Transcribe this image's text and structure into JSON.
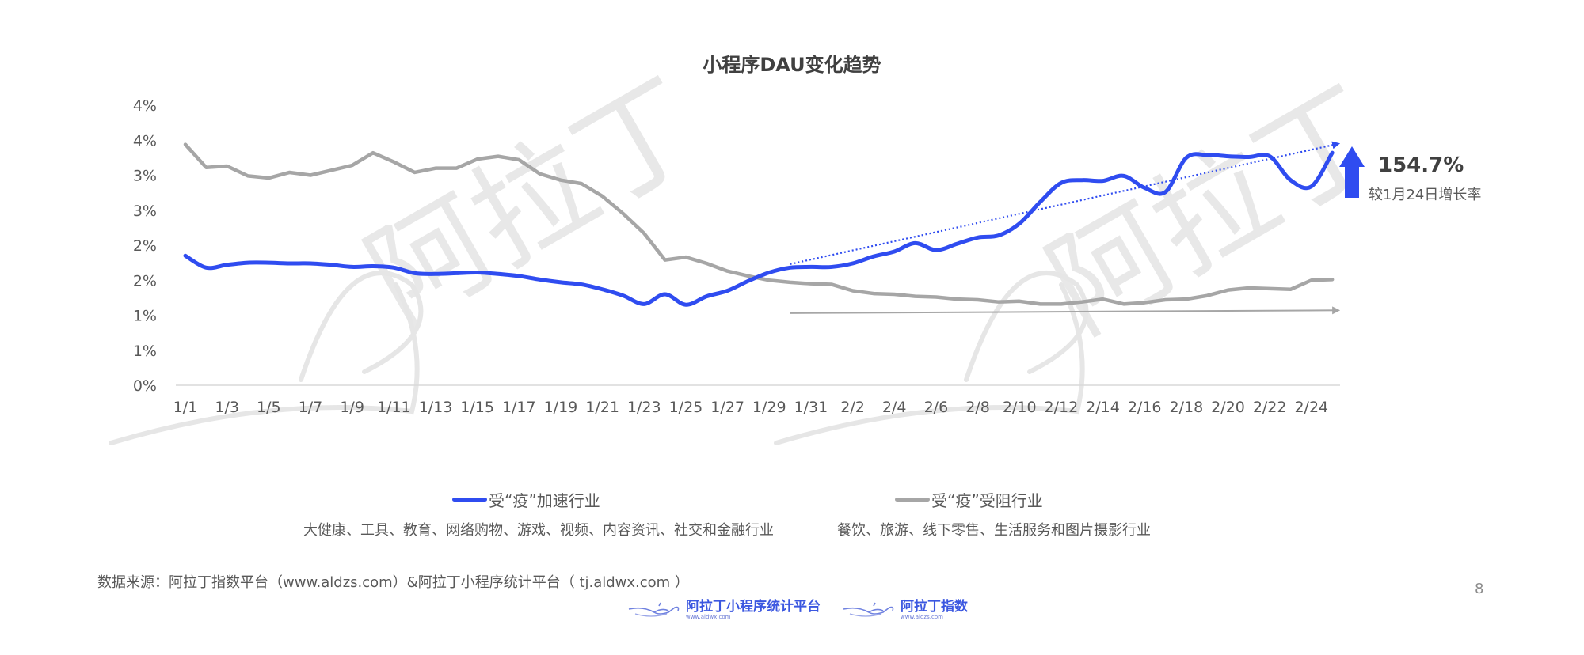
{
  "title": "小程序DAU变化趋势",
  "colors": {
    "accelerated": "#2f4cf0",
    "hindered": "#a6a6a6",
    "axis": "#d9d9d9",
    "text": "#595959",
    "watermark": "#e6e6e6"
  },
  "callout": {
    "icon": "up-arrow-icon",
    "value": "154.7%",
    "label": "较1月24日增长率"
  },
  "legend": {
    "accelerated": {
      "label": "受“疫”加速行业",
      "description": "大健康、工具、教育、网络购物、游戏、视频、内容资讯、社交和金融行业"
    },
    "hindered": {
      "label": "受“疫”受阻行业",
      "description": "餐饮、旅游、线下零售、生活服务和图片摄影行业"
    }
  },
  "footer": {
    "source": "数据来源：阿拉丁指数平台（www.aldzs.com）&阿拉丁小程序统计平台（ tj.aldwx.com ）",
    "page_number": "8",
    "logos": [
      {
        "name": "阿拉丁小程序统计平台",
        "url": "www.aldwx.com",
        "icon": "magic-lamp-icon"
      },
      {
        "name": "阿拉丁指数",
        "url": "www.aldzs.com",
        "icon": "magic-lamp-icon"
      }
    ]
  },
  "watermark": "阿拉丁",
  "chart_data": {
    "type": "line",
    "title": "小程序DAU变化趋势",
    "xlabel": "",
    "ylabel": "",
    "ylim": [
      0,
      4
    ],
    "ytick_values": [
      0,
      0.5,
      1,
      1.5,
      2,
      2.5,
      3,
      3.5,
      4
    ],
    "ytick_labels": [
      "0%",
      "1%",
      "1%",
      "2%",
      "2%",
      "3%",
      "3%",
      "4%",
      "4%"
    ],
    "ytick_labels_display": [
      "0%",
      "1%",
      "1%",
      "2%",
      "2%",
      "3%",
      "3%",
      "4%"
    ],
    "xtick_labels": [
      "1/1",
      "1/3",
      "1/5",
      "1/7",
      "1/9",
      "1/11",
      "1/13",
      "1/15",
      "1/17",
      "1/19",
      "1/21",
      "1/23",
      "1/25",
      "1/27",
      "1/29",
      "1/31",
      "2/2",
      "2/4",
      "2/6",
      "2/8",
      "2/10",
      "2/12",
      "2/14",
      "2/16",
      "2/18",
      "2/20",
      "2/22",
      "2/24"
    ],
    "grid": false,
    "legend_position": "bottom",
    "x": [
      "1/1",
      "1/2",
      "1/3",
      "1/4",
      "1/5",
      "1/6",
      "1/7",
      "1/8",
      "1/9",
      "1/10",
      "1/11",
      "1/12",
      "1/13",
      "1/14",
      "1/15",
      "1/16",
      "1/17",
      "1/18",
      "1/19",
      "1/20",
      "1/21",
      "1/22",
      "1/23",
      "1/24",
      "1/25",
      "1/26",
      "1/27",
      "1/28",
      "1/29",
      "1/30",
      "1/31",
      "2/1",
      "2/2",
      "2/3",
      "2/4",
      "2/5",
      "2/6",
      "2/7",
      "2/8",
      "2/9",
      "2/10",
      "2/11",
      "2/12",
      "2/13",
      "2/14",
      "2/15",
      "2/16",
      "2/17",
      "2/18",
      "2/19",
      "2/20",
      "2/21",
      "2/22",
      "2/23",
      "2/24",
      "2/25"
    ],
    "series": [
      {
        "name": "受“疫”加速行业",
        "color": "#2f4cf0",
        "smooth": true,
        "values": [
          1.85,
          1.68,
          1.72,
          1.75,
          1.75,
          1.74,
          1.74,
          1.72,
          1.69,
          1.7,
          1.68,
          1.6,
          1.59,
          1.6,
          1.61,
          1.59,
          1.56,
          1.51,
          1.47,
          1.44,
          1.37,
          1.28,
          1.16,
          1.3,
          1.15,
          1.27,
          1.35,
          1.49,
          1.61,
          1.68,
          1.69,
          1.69,
          1.74,
          1.84,
          1.91,
          2.03,
          1.93,
          2.02,
          2.11,
          2.14,
          2.31,
          2.62,
          2.89,
          2.93,
          2.92,
          2.99,
          2.82,
          2.76,
          3.25,
          3.29,
          3.27,
          3.26,
          3.27,
          2.93,
          2.84,
          3.32
        ]
      },
      {
        "name": "受“疫”受阻行业",
        "color": "#a6a6a6",
        "smooth": false,
        "values": [
          3.44,
          3.11,
          3.13,
          2.99,
          2.96,
          3.04,
          3.0,
          3.07,
          3.14,
          3.32,
          3.19,
          3.04,
          3.1,
          3.1,
          3.23,
          3.27,
          3.22,
          3.02,
          2.93,
          2.88,
          2.7,
          2.45,
          2.17,
          1.79,
          1.83,
          1.74,
          1.63,
          1.56,
          1.5,
          1.47,
          1.45,
          1.44,
          1.35,
          1.31,
          1.3,
          1.27,
          1.26,
          1.23,
          1.22,
          1.19,
          1.2,
          1.16,
          1.16,
          1.19,
          1.23,
          1.16,
          1.18,
          1.22,
          1.23,
          1.28,
          1.36,
          1.39,
          1.38,
          1.37,
          1.5,
          1.51
        ]
      }
    ],
    "annotations": [
      {
        "type": "trend-arrow",
        "series": "受“疫”加速行业",
        "style": "dotted",
        "from": {
          "x": "1/30",
          "y": 1.73
        },
        "to": {
          "x": "2/25",
          "y": 3.45
        }
      },
      {
        "type": "trend-arrow",
        "series": "受“疫”受阻行业",
        "style": "solid",
        "from": {
          "x": "1/30",
          "y": 1.03
        },
        "to": {
          "x": "2/25",
          "y": 1.07
        }
      },
      {
        "type": "callout",
        "text": "154.7%",
        "subtext": "较1月24日增长率"
      }
    ]
  }
}
